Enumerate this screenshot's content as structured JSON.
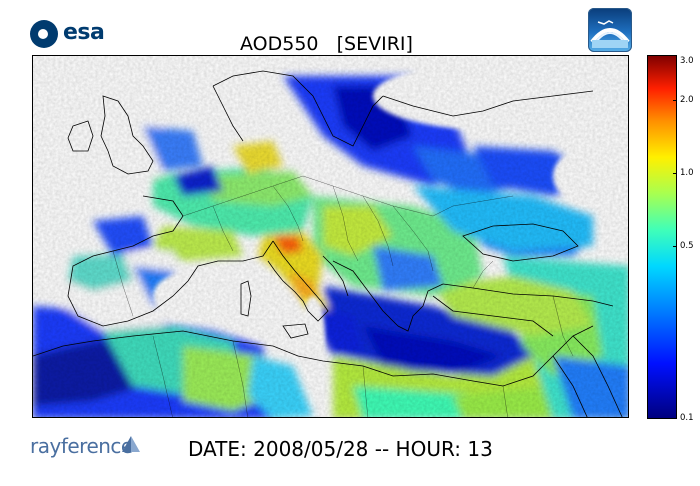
{
  "header": {
    "agency_logo_text": "esa",
    "title": "AOD550   [SEVIRI]"
  },
  "colorbar": {
    "ticks": [
      "3.0",
      "2.0",
      "1.0",
      "0.5",
      "0.1"
    ],
    "scale": "log",
    "range": [
      0.1,
      3.0
    ],
    "colors": [
      "#00007f",
      "#0010ff",
      "#0080ff",
      "#00d8ff",
      "#40ffb8",
      "#a8ff50",
      "#fff000",
      "#ff9000",
      "#ff2000",
      "#800000"
    ]
  },
  "footer": {
    "company_logo_text": "rayference",
    "date_text": "DATE: 2008/05/28 -- HOUR: 13"
  },
  "icons": [
    "esa-logo-icon",
    "app-logo-icon",
    "rayference-logo-icon"
  ]
}
